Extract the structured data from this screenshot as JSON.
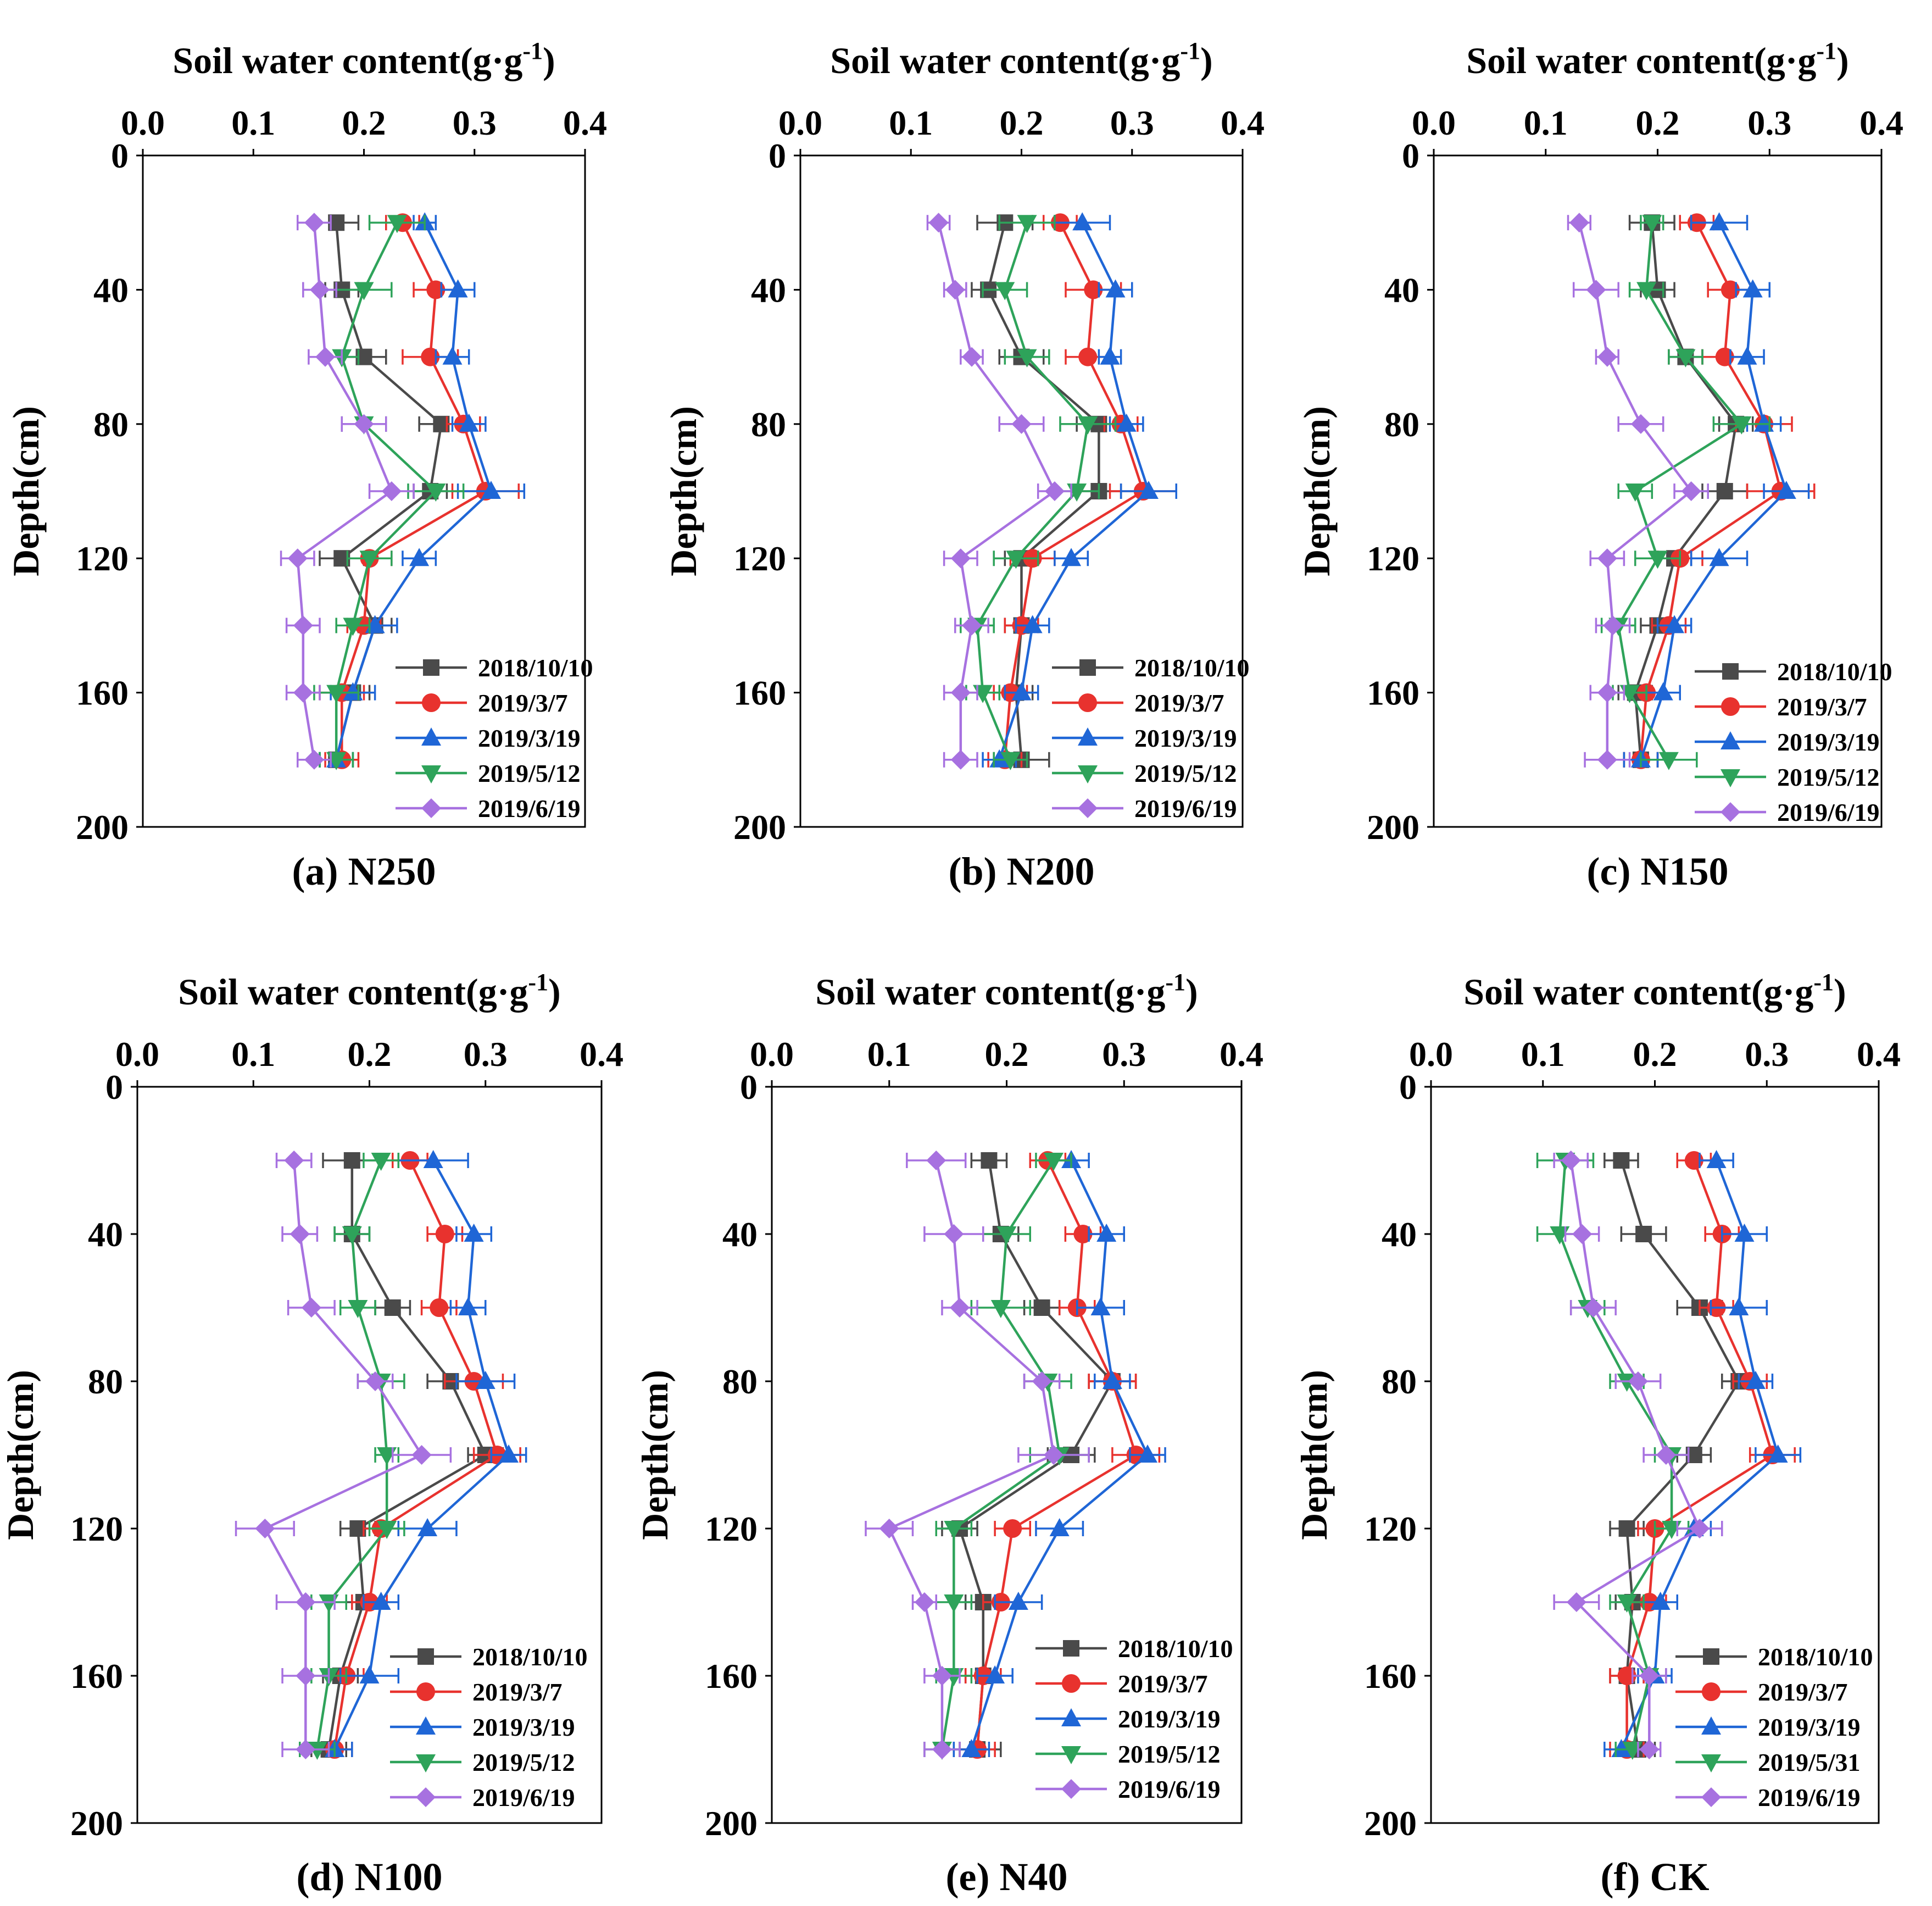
{
  "colors": {
    "2018/10/10": "#4a4a4a",
    "2019/3/7": "#e8322e",
    "2019/3/19": "#1f66d6",
    "2019/5/12": "#2ea35a",
    "2019/5/31": "#2ea35a",
    "2019/6/19": "#a771e0"
  },
  "markers": {
    "2018/10/10": "square",
    "2019/3/7": "circle",
    "2019/3/19": "triangle-up",
    "2019/5/12": "triangle-down",
    "2019/5/31": "triangle-down",
    "2019/6/19": "diamond"
  },
  "chart_data": [
    {
      "type": "line",
      "panel": "(a) N250",
      "title": "Soil water content(g·g-1)",
      "xlabel": "Soil water content(g·g-1)",
      "ylabel": "Depth(cm)",
      "xlim": [
        0.0,
        0.4
      ],
      "ylim": [
        0,
        200
      ],
      "xticks": [
        "0.0",
        "0.1",
        "0.2",
        "0.3",
        "0.4"
      ],
      "yticks": [
        "0",
        "40",
        "80",
        "120",
        "160",
        "200"
      ],
      "depths": [
        20,
        40,
        60,
        80,
        100,
        120,
        140,
        160,
        180
      ],
      "series": [
        {
          "name": "2018/10/10",
          "values": [
            0.175,
            0.18,
            0.2,
            0.27,
            0.26,
            0.18,
            0.21,
            0.19,
            0.175
          ],
          "errors": [
            0.02,
            0.015,
            0.02,
            0.02,
            0.015,
            0.02,
            0.015,
            0.015,
            0.015
          ]
        },
        {
          "name": "2019/3/7",
          "values": [
            0.235,
            0.265,
            0.26,
            0.29,
            0.31,
            0.205,
            0.2,
            0.18,
            0.18
          ],
          "errors": [
            0.015,
            0.02,
            0.025,
            0.015,
            0.03,
            0.02,
            0.015,
            0.02,
            0.015
          ]
        },
        {
          "name": "2019/3/19",
          "values": [
            0.255,
            0.285,
            0.28,
            0.295,
            0.315,
            0.25,
            0.21,
            0.19,
            0.175
          ],
          "errors": [
            0.01,
            0.015,
            0.015,
            0.015,
            0.03,
            0.015,
            0.02,
            0.02,
            0.015
          ]
        },
        {
          "name": "2019/5/12",
          "values": [
            0.23,
            0.2,
            0.18,
            0.2,
            0.265,
            0.205,
            0.19,
            0.175,
            0.175
          ],
          "errors": [
            0.025,
            0.025,
            0.015,
            0.02,
            0.025,
            0.02,
            0.015,
            0.02,
            0.015
          ]
        },
        {
          "name": "2019/6/19",
          "values": [
            0.155,
            0.16,
            0.165,
            0.2,
            0.225,
            0.14,
            0.145,
            0.145,
            0.155
          ],
          "errors": [
            0.015,
            0.015,
            0.015,
            0.02,
            0.02,
            0.015,
            0.015,
            0.015,
            0.015
          ]
        }
      ]
    },
    {
      "type": "line",
      "panel": "(b) N200",
      "title": "Soil water content(g·g-1)",
      "xlabel": "Soil water content(g·g-1)",
      "ylabel": "Depth(cm)",
      "xlim": [
        0.0,
        0.4
      ],
      "ylim": [
        0,
        200
      ],
      "xticks": [
        "0.0",
        "0.1",
        "0.2",
        "0.3",
        "0.4"
      ],
      "yticks": [
        "0",
        "40",
        "80",
        "120",
        "160",
        "200"
      ],
      "depths": [
        20,
        40,
        60,
        80,
        100,
        120,
        140,
        160,
        180
      ],
      "series": [
        {
          "name": "2018/10/10",
          "values": [
            0.185,
            0.17,
            0.2,
            0.27,
            0.27,
            0.2,
            0.2,
            0.195,
            0.2
          ],
          "errors": [
            0.025,
            0.015,
            0.02,
            0.02,
            0.02,
            0.015,
            0.015,
            0.015,
            0.025
          ]
        },
        {
          "name": "2019/3/7",
          "values": [
            0.235,
            0.265,
            0.26,
            0.29,
            0.31,
            0.21,
            0.2,
            0.19,
            0.185
          ],
          "errors": [
            0.015,
            0.025,
            0.02,
            0.015,
            0.03,
            0.02,
            0.015,
            0.015,
            0.015
          ]
        },
        {
          "name": "2019/3/19",
          "values": [
            0.255,
            0.285,
            0.28,
            0.295,
            0.315,
            0.245,
            0.21,
            0.2,
            0.18
          ],
          "errors": [
            0.025,
            0.015,
            0.01,
            0.015,
            0.025,
            0.015,
            0.015,
            0.015,
            0.015
          ]
        },
        {
          "name": "2019/5/12",
          "values": [
            0.205,
            0.185,
            0.205,
            0.26,
            0.25,
            0.195,
            0.16,
            0.165,
            0.19
          ],
          "errors": [
            0.025,
            0.02,
            0.02,
            0.025,
            0.02,
            0.02,
            0.015,
            0.015,
            0.015
          ]
        },
        {
          "name": "2019/6/19",
          "values": [
            0.125,
            0.14,
            0.155,
            0.2,
            0.23,
            0.145,
            0.155,
            0.145,
            0.145
          ],
          "errors": [
            0.01,
            0.01,
            0.01,
            0.02,
            0.015,
            0.015,
            0.015,
            0.015,
            0.015
          ]
        }
      ]
    },
    {
      "type": "line",
      "panel": "(c) N150",
      "title": "Soil water content(g·g-1)",
      "xlabel": "Soil water content(g·g-1)",
      "ylabel": "Depth(cm)",
      "xlim": [
        0.0,
        0.4
      ],
      "ylim": [
        0,
        200
      ],
      "xticks": [
        "0.0",
        "0.1",
        "0.2",
        "0.3",
        "0.4"
      ],
      "yticks": [
        "0",
        "40",
        "80",
        "120",
        "160",
        "200"
      ],
      "depths": [
        20,
        40,
        60,
        80,
        100,
        120,
        140,
        160,
        180
      ],
      "series": [
        {
          "name": "2018/10/10",
          "values": [
            0.195,
            0.2,
            0.225,
            0.27,
            0.26,
            0.215,
            0.2,
            0.18,
            0.185
          ],
          "errors": [
            0.02,
            0.015,
            0.015,
            0.015,
            0.02,
            0.015,
            0.015,
            0.015,
            0.015
          ]
        },
        {
          "name": "2019/3/7",
          "values": [
            0.235,
            0.265,
            0.26,
            0.295,
            0.31,
            0.22,
            0.21,
            0.19,
            0.185
          ],
          "errors": [
            0.015,
            0.02,
            0.02,
            0.025,
            0.03,
            0.02,
            0.015,
            0.015,
            0.015
          ]
        },
        {
          "name": "2019/3/19",
          "values": [
            0.255,
            0.285,
            0.28,
            0.295,
            0.315,
            0.255,
            0.215,
            0.205,
            0.185
          ],
          "errors": [
            0.025,
            0.015,
            0.015,
            0.015,
            0.02,
            0.025,
            0.015,
            0.015,
            0.015
          ]
        },
        {
          "name": "2019/5/12",
          "values": [
            0.195,
            0.19,
            0.225,
            0.275,
            0.18,
            0.2,
            0.165,
            0.175,
            0.21
          ],
          "errors": [
            0.01,
            0.015,
            0.015,
            0.025,
            0.015,
            0.02,
            0.015,
            0.015,
            0.025
          ]
        },
        {
          "name": "2019/6/19",
          "values": [
            0.13,
            0.145,
            0.155,
            0.185,
            0.23,
            0.155,
            0.16,
            0.155,
            0.155
          ],
          "errors": [
            0.01,
            0.02,
            0.01,
            0.02,
            0.015,
            0.015,
            0.015,
            0.015,
            0.02
          ]
        }
      ]
    },
    {
      "type": "line",
      "panel": "(d) N100",
      "title": "Soil water content(g·g-1)",
      "xlabel": "Soil water content(g·g-1)",
      "ylabel": "Depth(cm)",
      "xlim": [
        0.0,
        0.4
      ],
      "ylim": [
        0,
        200
      ],
      "xticks": [
        "0.0",
        "0.1",
        "0.2",
        "0.3",
        "0.4"
      ],
      "yticks": [
        "0",
        "40",
        "80",
        "120",
        "160",
        "200"
      ],
      "depths": [
        20,
        40,
        60,
        80,
        100,
        120,
        140,
        160,
        180
      ],
      "series": [
        {
          "name": "2018/10/10",
          "values": [
            0.185,
            0.185,
            0.22,
            0.27,
            0.3,
            0.19,
            0.195,
            0.175,
            0.165
          ],
          "errors": [
            0.025,
            0.015,
            0.015,
            0.02,
            0.015,
            0.015,
            0.015,
            0.015,
            0.015
          ]
        },
        {
          "name": "2019/3/7",
          "values": [
            0.235,
            0.265,
            0.26,
            0.29,
            0.31,
            0.21,
            0.2,
            0.18,
            0.17
          ],
          "errors": [
            0.015,
            0.015,
            0.015,
            0.025,
            0.02,
            0.015,
            0.015,
            0.015,
            0.015
          ]
        },
        {
          "name": "2019/3/19",
          "values": [
            0.255,
            0.29,
            0.285,
            0.3,
            0.32,
            0.25,
            0.21,
            0.2,
            0.17
          ],
          "errors": [
            0.03,
            0.015,
            0.015,
            0.025,
            0.015,
            0.025,
            0.015,
            0.025,
            0.015
          ]
        },
        {
          "name": "2019/5/12",
          "values": [
            0.21,
            0.185,
            0.19,
            0.21,
            0.215,
            0.215,
            0.165,
            0.165,
            0.155
          ],
          "errors": [
            0.015,
            0.015,
            0.015,
            0.02,
            0.01,
            0.015,
            0.015,
            0.015,
            0.015
          ]
        },
        {
          "name": "2019/6/19",
          "values": [
            0.135,
            0.14,
            0.15,
            0.205,
            0.245,
            0.11,
            0.145,
            0.145,
            0.145
          ],
          "errors": [
            0.015,
            0.015,
            0.02,
            0.015,
            0.025,
            0.025,
            0.025,
            0.02,
            0.02
          ]
        }
      ]
    },
    {
      "type": "line",
      "panel": "(e) N40",
      "title": "Soil water content(g·g-1)",
      "xlabel": "Soil water content(g·g-1)",
      "ylabel": "Depth(cm)",
      "xlim": [
        0.0,
        0.4
      ],
      "ylim": [
        0,
        200
      ],
      "xticks": [
        "0.0",
        "0.1",
        "0.2",
        "0.3",
        "0.4"
      ],
      "yticks": [
        "0",
        "40",
        "80",
        "120",
        "160",
        "200"
      ],
      "depths": [
        20,
        40,
        60,
        80,
        100,
        120,
        140,
        160,
        180
      ],
      "series": [
        {
          "name": "2018/10/10",
          "values": [
            0.185,
            0.195,
            0.23,
            0.29,
            0.255,
            0.16,
            0.18,
            0.18,
            0.175
          ],
          "errors": [
            0.015,
            0.015,
            0.015,
            0.02,
            0.02,
            0.015,
            0.015,
            0.015,
            0.02
          ]
        },
        {
          "name": "2019/3/7",
          "values": [
            0.235,
            0.265,
            0.26,
            0.29,
            0.31,
            0.205,
            0.195,
            0.18,
            0.175
          ],
          "errors": [
            0.015,
            0.015,
            0.015,
            0.02,
            0.02,
            0.015,
            0.015,
            0.015,
            0.015
          ]
        },
        {
          "name": "2019/3/19",
          "values": [
            0.255,
            0.285,
            0.28,
            0.29,
            0.32,
            0.245,
            0.21,
            0.19,
            0.17
          ],
          "errors": [
            0.015,
            0.015,
            0.02,
            0.015,
            0.015,
            0.02,
            0.02,
            0.015,
            0.015
          ]
        },
        {
          "name": "2019/5/12",
          "values": [
            0.24,
            0.2,
            0.195,
            0.235,
            0.245,
            0.155,
            0.155,
            0.155,
            0.145
          ],
          "errors": [
            0.015,
            0.02,
            0.025,
            0.02,
            0.025,
            0.015,
            0.015,
            0.015,
            0.015
          ]
        },
        {
          "name": "2019/6/19",
          "values": [
            0.14,
            0.155,
            0.16,
            0.23,
            0.24,
            0.1,
            0.13,
            0.145,
            0.145
          ],
          "errors": [
            0.025,
            0.025,
            0.015,
            0.015,
            0.03,
            0.02,
            0.01,
            0.015,
            0.015
          ]
        }
      ]
    },
    {
      "type": "line",
      "panel": "(f) CK",
      "title": "Soil water content(g·g-1)",
      "xlabel": "Soil water content(g·g-1)",
      "ylabel": "Depth(cm)",
      "xlim": [
        0.0,
        0.4
      ],
      "ylim": [
        0,
        200
      ],
      "xticks": [
        "0.0",
        "0.1",
        "0.2",
        "0.3",
        "0.4"
      ],
      "yticks": [
        "0",
        "40",
        "80",
        "120",
        "160",
        "200"
      ],
      "depths": [
        20,
        40,
        60,
        80,
        100,
        120,
        140,
        160,
        180
      ],
      "series": [
        {
          "name": "2018/10/10",
          "values": [
            0.17,
            0.19,
            0.24,
            0.275,
            0.235,
            0.175,
            0.18,
            0.175,
            0.185
          ],
          "errors": [
            0.015,
            0.02,
            0.02,
            0.015,
            0.015,
            0.015,
            0.015,
            0.015,
            0.015
          ]
        },
        {
          "name": "2019/3/7",
          "values": [
            0.235,
            0.26,
            0.255,
            0.285,
            0.305,
            0.2,
            0.195,
            0.175,
            0.175
          ],
          "errors": [
            0.015,
            0.015,
            0.015,
            0.015,
            0.02,
            0.015,
            0.015,
            0.015,
            0.015
          ]
        },
        {
          "name": "2019/3/19",
          "values": [
            0.255,
            0.28,
            0.275,
            0.29,
            0.31,
            0.235,
            0.205,
            0.2,
            0.17
          ],
          "errors": [
            0.015,
            0.02,
            0.025,
            0.015,
            0.02,
            0.015,
            0.015,
            0.015,
            0.015
          ]
        },
        {
          "name": "2019/5/31",
          "values": [
            0.12,
            0.115,
            0.14,
            0.175,
            0.215,
            0.215,
            0.175,
            0.195,
            0.18
          ],
          "errors": [
            0.025,
            0.02,
            0.015,
            0.015,
            0.015,
            0.015,
            0.015,
            0.015,
            0.015
          ]
        },
        {
          "name": "2019/6/19",
          "values": [
            0.125,
            0.135,
            0.145,
            0.185,
            0.21,
            0.24,
            0.13,
            0.195,
            0.195
          ],
          "errors": [
            0.015,
            0.015,
            0.02,
            0.02,
            0.02,
            0.02,
            0.02,
            0.015,
            0.01
          ]
        }
      ]
    }
  ]
}
